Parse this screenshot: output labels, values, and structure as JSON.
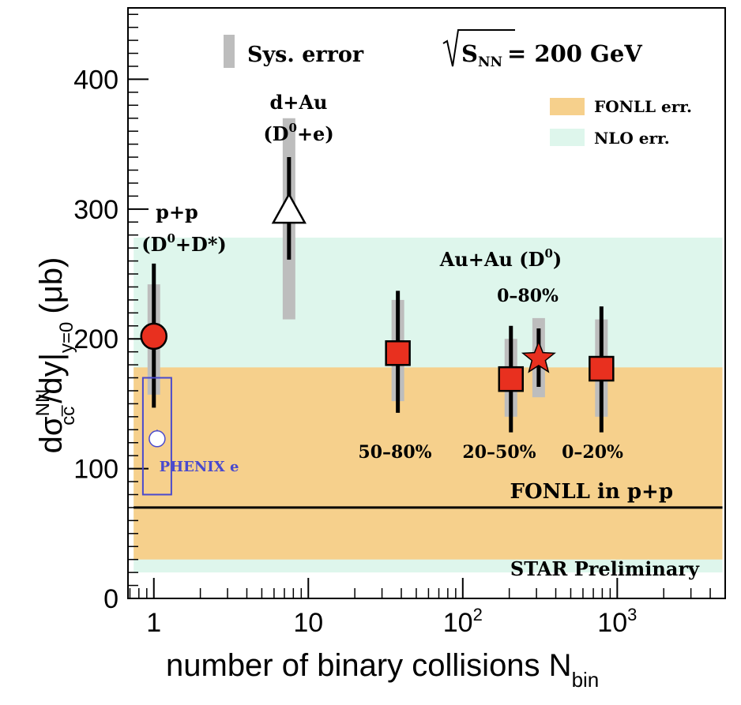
{
  "chart_data": {
    "type": "scatter",
    "x_scale": "log",
    "xlim": [
      0.68,
      5000
    ],
    "ylim": [
      0,
      455
    ],
    "y_ticks": [
      0,
      100,
      200,
      300,
      400
    ],
    "x_ticks": [
      {
        "value": 1,
        "label": "1"
      },
      {
        "value": 10,
        "label": "10"
      },
      {
        "value": 100,
        "base": "10",
        "exp": "2"
      },
      {
        "value": 1000,
        "base": "10",
        "exp": "3"
      }
    ],
    "xlabel": "number of binary collisions N",
    "xlabel_sub": "bin",
    "ylabel": {
      "main": "dσ",
      "sup": "NN",
      "sub": "cc̅",
      "mid": "/dy|",
      "sub2": "y=0",
      "unit": "(μb)"
    },
    "bands": [
      {
        "name": "NLO err.",
        "ymin": 20,
        "ymax": 278,
        "color": "#def6ec"
      },
      {
        "name": "FONLL err.",
        "ymin": 30,
        "ymax": 178,
        "color": "#f6d08c"
      }
    ],
    "fonll_line": {
      "label": "FONLL in p+p",
      "y": 70,
      "x_from": 0.68,
      "x_to": 5000
    },
    "series": [
      {
        "name": "p+p (D0+D*)",
        "marker": "circle",
        "color": "#e8301f",
        "x": 1,
        "y": 202,
        "stat": [
          147,
          258
        ],
        "sys": [
          157,
          242
        ]
      },
      {
        "name": "d+Au (D0+e)",
        "marker": "triangle-open",
        "color": "#ffffff",
        "x": 7.5,
        "y": 298,
        "stat": [
          261,
          340
        ],
        "sys": [
          215,
          370
        ]
      },
      {
        "name": "Au+Au 50-80%",
        "marker": "square",
        "color": "#e8301f",
        "x": 38,
        "y": 189,
        "stat": [
          143,
          237
        ],
        "sys": [
          152,
          230
        ]
      },
      {
        "name": "Au+Au 20-50%",
        "marker": "square",
        "color": "#e8301f",
        "x": 205,
        "y": 169,
        "stat": [
          128,
          210
        ],
        "sys": [
          140,
          200
        ]
      },
      {
        "name": "Au+Au 0-80%",
        "marker": "star",
        "color": "#e8301f",
        "x": 310,
        "y": 185,
        "stat": [
          163,
          208
        ],
        "sys": [
          155,
          216
        ]
      },
      {
        "name": "Au+Au 0-20%",
        "marker": "square",
        "color": "#e8301f",
        "x": 790,
        "y": 177,
        "stat": [
          128,
          225
        ],
        "sys": [
          140,
          215
        ]
      },
      {
        "name": "PHENIX e",
        "marker": "circle-open",
        "color": "#4a4acd",
        "x": 1.05,
        "y": 123,
        "stat": [
          118,
          130
        ],
        "sys": [
          80,
          170
        ]
      }
    ]
  },
  "labels": {
    "sys_error": "Sys. error",
    "energy": {
      "s": "S",
      "sub": "NN",
      "value": "= 200 GeV"
    },
    "legend_fonll": "FONLL err.",
    "legend_nlo": "NLO err.",
    "pp_line1": "p+p",
    "pp_line2": {
      "a": "(D",
      "sup": "0",
      "b": "+D*)"
    },
    "dau_line1": "d+Au",
    "dau_line2": {
      "a": "(D",
      "sup": "0",
      "b": "+e)"
    },
    "auau": {
      "a": "Au+Au (D",
      "sup": "0",
      "b": ")"
    },
    "cent_0_80": "0–80%",
    "cent_50_80": "50–80%",
    "cent_20_50": "20–50%",
    "cent_0_20": "0–20%",
    "phenix": "PHENIX e",
    "fonll_pp": "FONLL in p+p",
    "star_prelim": "STAR Preliminary"
  }
}
